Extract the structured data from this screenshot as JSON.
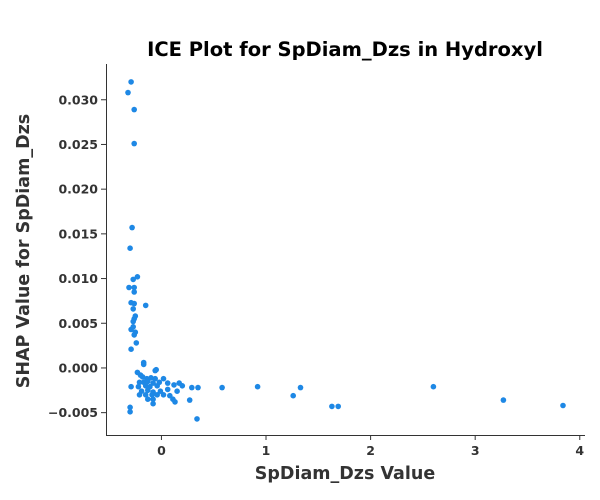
{
  "chart_data": {
    "type": "scatter",
    "title": "ICE Plot for SpDiam_Dzs in Hydroxyl",
    "xlabel": "SpDiam_Dzs Value",
    "ylabel": "SHAP Value for SpDiam_Dzs",
    "xlim": [
      -0.53,
      4.05
    ],
    "ylim": [
      -0.0075,
      0.034
    ],
    "xticks": [
      0,
      1,
      2,
      3,
      4
    ],
    "xtick_labels": [
      "0",
      "1",
      "2",
      "3",
      "4"
    ],
    "yticks": [
      -0.005,
      0.0,
      0.005,
      0.01,
      0.015,
      0.02,
      0.025,
      0.03
    ],
    "ytick_labels": [
      "−0.005",
      "0.000",
      "0.005",
      "0.010",
      "0.015",
      "0.020",
      "0.025",
      "0.030"
    ],
    "grid": false,
    "spines": [
      "left",
      "bottom"
    ],
    "marker_color": "#1e88e5",
    "points": [
      [
        -0.32,
        0.0308
      ],
      [
        -0.29,
        0.032
      ],
      [
        -0.26,
        0.0289
      ],
      [
        -0.26,
        0.0251
      ],
      [
        -0.28,
        0.0157
      ],
      [
        -0.3,
        0.0134
      ],
      [
        -0.23,
        0.0102
      ],
      [
        -0.27,
        0.0099
      ],
      [
        -0.31,
        0.009
      ],
      [
        -0.26,
        0.009
      ],
      [
        -0.26,
        0.0085
      ],
      [
        -0.29,
        0.0073
      ],
      [
        -0.26,
        0.0072
      ],
      [
        -0.15,
        0.007
      ],
      [
        -0.27,
        0.0066
      ],
      [
        -0.25,
        0.0058
      ],
      [
        -0.26,
        0.0055
      ],
      [
        -0.27,
        0.0052
      ],
      [
        -0.27,
        0.0046
      ],
      [
        -0.29,
        0.0043
      ],
      [
        -0.25,
        0.004
      ],
      [
        -0.26,
        0.0037
      ],
      [
        -0.24,
        0.0028
      ],
      [
        -0.29,
        0.0021
      ],
      [
        -0.17,
        0.0006
      ],
      [
        -0.17,
        0.0004
      ],
      [
        -0.23,
        -0.0005
      ],
      [
        -0.2,
        -0.0008
      ],
      [
        -0.05,
        -0.0002
      ],
      [
        -0.06,
        -0.0003
      ],
      [
        -0.18,
        -0.001
      ],
      [
        -0.14,
        -0.0012
      ],
      [
        -0.1,
        -0.0011
      ],
      [
        -0.06,
        -0.0012
      ],
      [
        0.02,
        -0.0012
      ],
      [
        -0.21,
        -0.0016
      ],
      [
        -0.17,
        -0.0016
      ],
      [
        -0.13,
        -0.0015
      ],
      [
        -0.08,
        -0.0017
      ],
      [
        -0.02,
        -0.0016
      ],
      [
        0.06,
        -0.0017
      ],
      [
        0.17,
        -0.0017
      ],
      [
        -0.29,
        -0.0021
      ],
      [
        -0.22,
        -0.0021
      ],
      [
        -0.15,
        -0.002
      ],
      [
        -0.11,
        -0.0021
      ],
      [
        -0.04,
        -0.002
      ],
      [
        0.12,
        -0.0019
      ],
      [
        0.2,
        -0.002
      ],
      [
        0.29,
        -0.0022
      ],
      [
        0.35,
        -0.0022
      ],
      [
        0.58,
        -0.0022
      ],
      [
        0.92,
        -0.0021
      ],
      [
        1.33,
        -0.0022
      ],
      [
        2.6,
        -0.0021
      ],
      [
        -0.19,
        -0.0026
      ],
      [
        -0.13,
        -0.0025
      ],
      [
        -0.08,
        -0.0027
      ],
      [
        -0.01,
        -0.0026
      ],
      [
        0.06,
        -0.0024
      ],
      [
        0.15,
        -0.0026
      ],
      [
        -0.21,
        -0.003
      ],
      [
        -0.15,
        -0.003
      ],
      [
        -0.09,
        -0.003
      ],
      [
        -0.04,
        -0.003
      ],
      [
        0.02,
        -0.003
      ],
      [
        0.08,
        -0.0031
      ],
      [
        1.26,
        -0.0031
      ],
      [
        -0.13,
        -0.0035
      ],
      [
        -0.08,
        -0.0035
      ],
      [
        0.11,
        -0.0035
      ],
      [
        0.27,
        -0.0036
      ],
      [
        3.27,
        -0.0036
      ],
      [
        -0.08,
        -0.004
      ],
      [
        0.13,
        -0.0038
      ],
      [
        1.63,
        -0.0043
      ],
      [
        1.69,
        -0.0043
      ],
      [
        3.84,
        -0.0042
      ],
      [
        -0.3,
        -0.0044
      ],
      [
        -0.3,
        -0.0049
      ],
      [
        0.34,
        -0.0057
      ]
    ]
  }
}
